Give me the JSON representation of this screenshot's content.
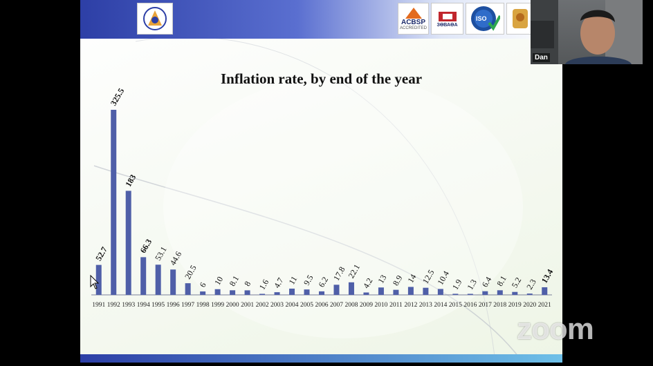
{
  "webcam": {
    "participant_name": "Dan"
  },
  "watermark": {
    "text": "zoom"
  },
  "slide": {
    "logos": [
      {
        "name": "university-logo",
        "text": ""
      },
      {
        "name": "acbsp-logo",
        "text": "ACBSP",
        "subtext": "ACCREDITED"
      },
      {
        "name": "accreditation-logo",
        "text": "ЗӨВАӨА"
      },
      {
        "name": "iso-logo",
        "text": "ISO"
      },
      {
        "name": "emblem-logo",
        "text": ""
      }
    ]
  },
  "chart_data": {
    "type": "bar",
    "title": "Inflation rate, by end of the year",
    "xlabel": "",
    "ylabel": "",
    "ylim": [
      0,
      340
    ],
    "grid": false,
    "bar_color": "#4f5fa8",
    "categories": [
      "1991",
      "1992",
      "1993",
      "1994",
      "1995",
      "1996",
      "1997",
      "1998",
      "1999",
      "2000",
      "2001",
      "2002",
      "2003",
      "2004",
      "2005",
      "2006",
      "2007",
      "2008",
      "2009",
      "2010",
      "2011",
      "2012",
      "2013",
      "2014",
      "2015",
      "2016",
      "2017",
      "2018",
      "2019",
      "2020",
      "2021"
    ],
    "values": [
      52.7,
      325.5,
      183,
      66.3,
      53.1,
      44.6,
      20.5,
      6,
      10,
      8.1,
      8,
      1.6,
      4.7,
      11,
      9.5,
      6.2,
      17.8,
      22.1,
      4.2,
      13,
      8.9,
      14,
      12.5,
      10.4,
      1.9,
      1.3,
      6.4,
      8.1,
      5.2,
      2.3,
      13.4
    ],
    "labels": [
      "52.7",
      "325.5",
      "183",
      "66.3",
      "53.1",
      "44.6",
      "20.5",
      "6",
      "10",
      "8.1",
      "8",
      "1.6",
      "4.7",
      "11",
      "9.5",
      "6.2",
      "17.8",
      "22.1",
      "4.2",
      "13",
      "8.9",
      "14",
      "12.5",
      "10.4",
      "1.9",
      "1.3",
      "6.4",
      "8.1",
      "5.2",
      "2.3",
      "13.4"
    ],
    "bold_labels": [
      0,
      1,
      2,
      3,
      30
    ]
  }
}
